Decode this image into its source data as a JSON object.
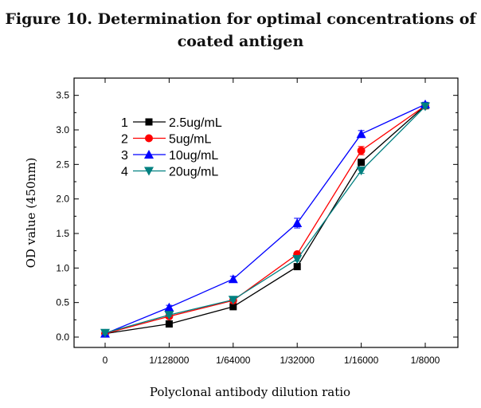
{
  "figure_title_line1": "Figure 10. Determination for optimal concentrations of",
  "figure_title_line2": "coated antigen",
  "chart_data": {
    "type": "line",
    "title": "Figure 10. Determination for optimal concentrations of coated antigen",
    "xlabel": "Polyclonal antibody dilution ratio",
    "ylabel": "OD value (450nm)",
    "categories": [
      "0",
      "1/128000",
      "1/64000",
      "1/32000",
      "1/16000",
      "1/8000"
    ],
    "yticks": [
      "0.0",
      "0.5",
      "1.0",
      "1.5",
      "2.0",
      "2.5",
      "3.0",
      "3.5"
    ],
    "ylim": [
      -0.15,
      3.75
    ],
    "grid": false,
    "legend_position": "top-left",
    "series": [
      {
        "index": "1",
        "name": "2.5ug/mL",
        "marker": "square",
        "color": "#000000",
        "values": [
          0.05,
          0.19,
          0.44,
          1.02,
          2.53,
          3.35
        ],
        "errors": [
          0.02,
          0.02,
          0.02,
          0.03,
          0.04,
          0.03
        ]
      },
      {
        "index": "2",
        "name": "5ug/mL",
        "marker": "circle",
        "color": "#ff0000",
        "values": [
          0.05,
          0.3,
          0.53,
          1.2,
          2.7,
          3.35
        ],
        "errors": [
          0.02,
          0.02,
          0.02,
          0.03,
          0.06,
          0.03
        ]
      },
      {
        "index": "3",
        "name": "10ug/mL",
        "marker": "triangle-up",
        "color": "#0000ff",
        "values": [
          0.05,
          0.43,
          0.84,
          1.65,
          2.94,
          3.37
        ],
        "errors": [
          0.02,
          0.03,
          0.04,
          0.07,
          0.05,
          0.03
        ]
      },
      {
        "index": "4",
        "name": "20ug/mL",
        "marker": "triangle-down",
        "color": "#008080",
        "values": [
          0.06,
          0.32,
          0.54,
          1.13,
          2.41,
          3.34
        ],
        "errors": [
          0.02,
          0.02,
          0.02,
          0.03,
          0.04,
          0.03
        ]
      }
    ]
  }
}
